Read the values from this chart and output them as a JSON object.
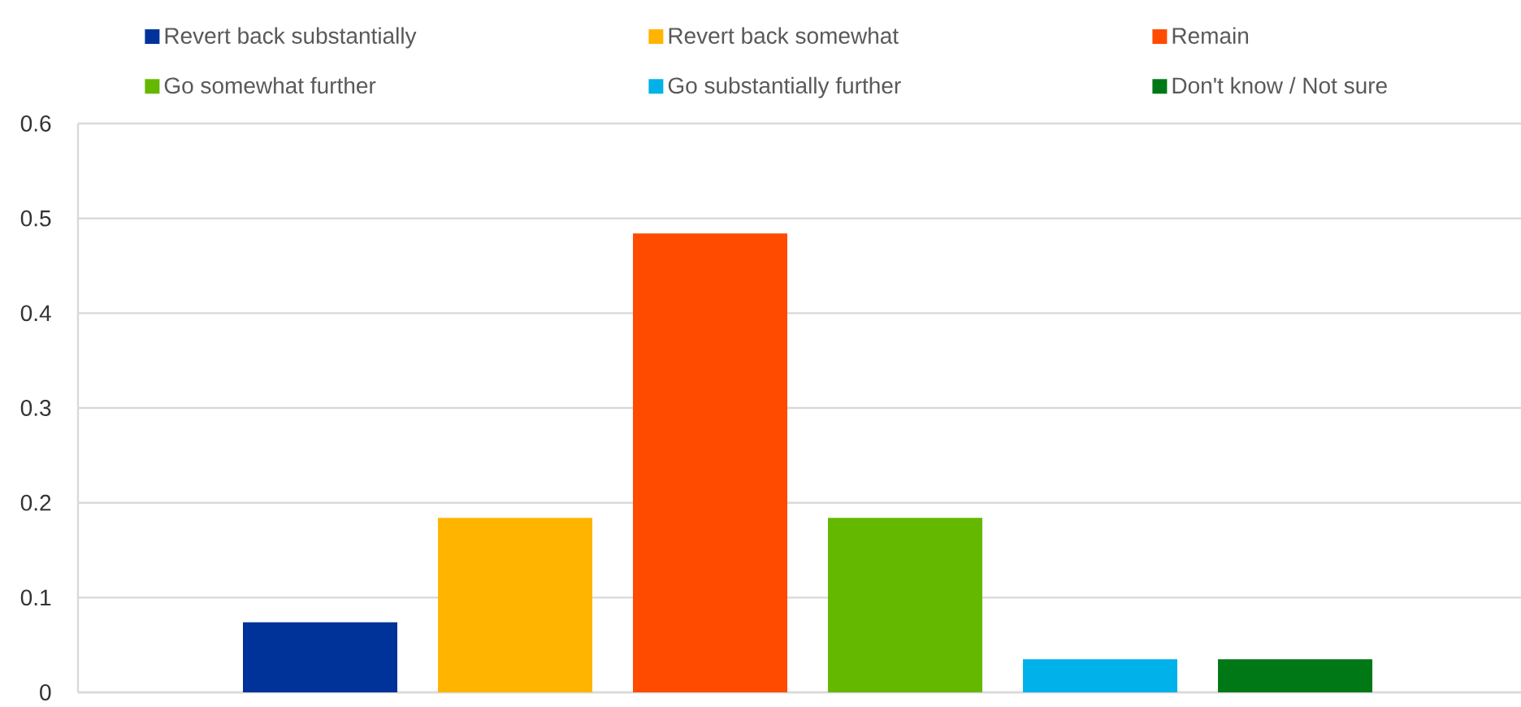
{
  "chart_data": {
    "type": "bar",
    "categories": [
      null
    ],
    "series": [
      {
        "name": "Revert back substantially",
        "color": "#003399",
        "values": [
          0.074
        ]
      },
      {
        "name": "Revert back somewhat",
        "color": "#ffb400",
        "values": [
          0.184
        ]
      },
      {
        "name": "Remain",
        "color": "#ff4b00",
        "values": [
          0.484
        ]
      },
      {
        "name": "Go somewhat further",
        "color": "#65b800",
        "values": [
          0.184
        ]
      },
      {
        "name": "Go substantially further",
        "color": "#00b1ea",
        "values": [
          0.035
        ]
      },
      {
        "name": "Don't know / Not sure",
        "color": "#007816",
        "values": [
          0.035
        ]
      }
    ],
    "ylim": [
      0,
      0.6
    ],
    "yticks": [
      0,
      0.1,
      0.2,
      0.3,
      0.4,
      0.5,
      0.6
    ],
    "grid": "y",
    "legend": "top"
  }
}
